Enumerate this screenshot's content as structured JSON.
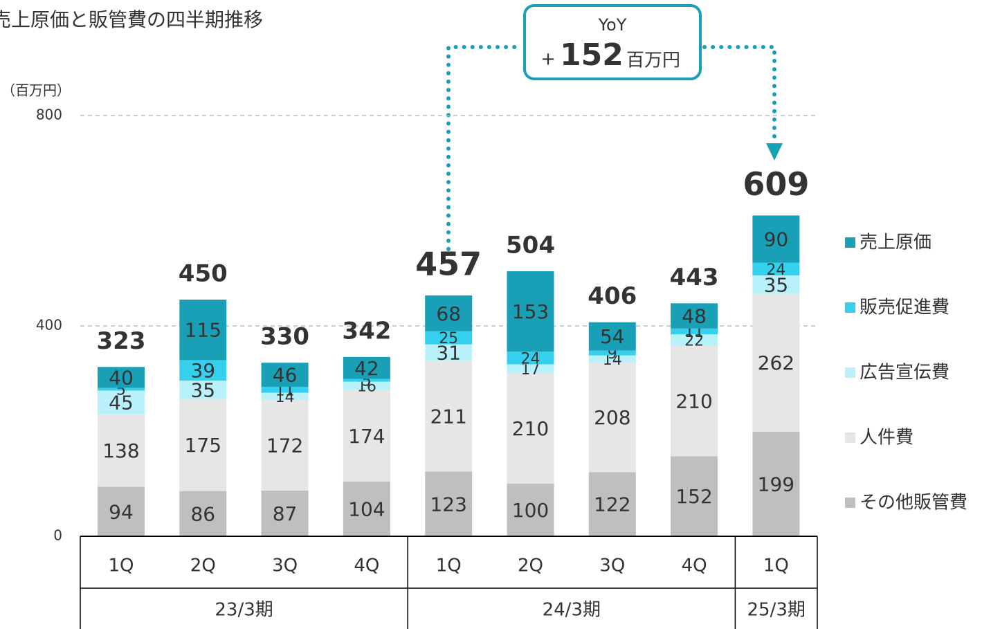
{
  "chart_data": {
    "type": "stacked_bar",
    "title": "売上原価と販管費の四半期推移",
    "unit_label": "（百万円）",
    "categories": [
      "1Q",
      "2Q",
      "3Q",
      "4Q",
      "1Q",
      "2Q",
      "3Q",
      "4Q",
      "1Q"
    ],
    "groups": [
      "23/3期",
      "24/3期",
      "25/3期"
    ],
    "series": [
      {
        "name": "その他販管費",
        "color": "#bfbfbf",
        "values": [
          94,
          86,
          87,
          104,
          123,
          100,
          122,
          152,
          199
        ]
      },
      {
        "name": "人件費",
        "color": "#e6e6e6",
        "values": [
          138,
          175,
          172,
          174,
          211,
          210,
          208,
          210,
          262
        ]
      },
      {
        "name": "広告宣伝費",
        "color": "#b9f1fa",
        "values": [
          45,
          35,
          14,
          16,
          31,
          17,
          14,
          22,
          35
        ]
      },
      {
        "name": "販売促進費",
        "color": "#35d0ee",
        "values": [
          5,
          39,
          11,
          5,
          25,
          24,
          9,
          11,
          24
        ]
      },
      {
        "name": "売上原価",
        "color": "#1aa0b6",
        "values": [
          40,
          115,
          46,
          42,
          68,
          153,
          54,
          48,
          90
        ]
      }
    ],
    "totals": [
      323,
      450,
      330,
      342,
      457,
      504,
      406,
      443,
      609
    ],
    "highlight": [
      4,
      8
    ],
    "highlight_color": "#1aa0b6",
    "ylim": [
      0,
      800
    ],
    "yticks": [
      0,
      400,
      800
    ],
    "grid": true,
    "legend": "right",
    "annotation": {
      "label": "YoY",
      "sign": "+",
      "value": 152,
      "unit": "百万円"
    }
  }
}
